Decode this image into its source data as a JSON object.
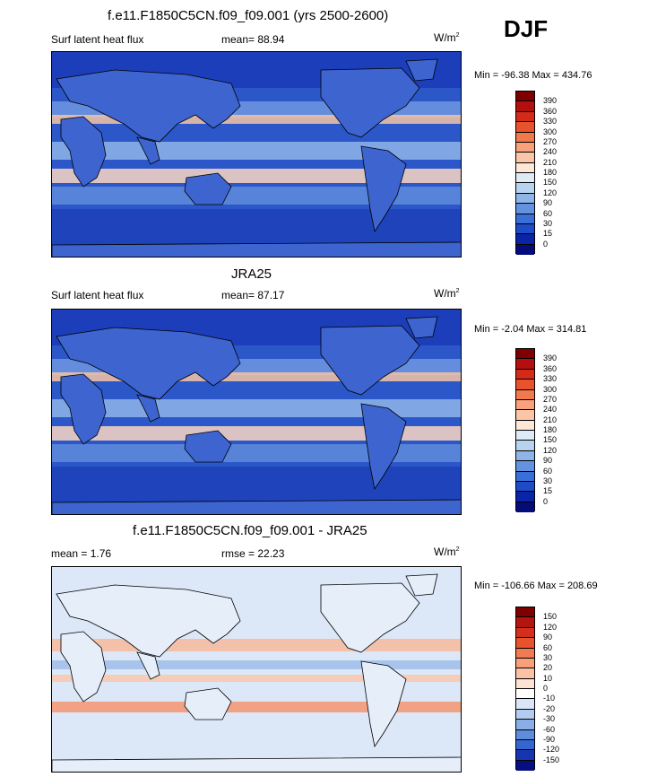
{
  "season": "DJF",
  "panels": [
    {
      "id": "model",
      "title": "f.e11.F1850C5CN.f09_f09.001 (yrs 2500-2600)",
      "left_label": "Surf latent heat flux",
      "stat_label": "mean=  88.94",
      "units": "W/m",
      "units_sup": "2",
      "minmax": "Min = -96.38 Max = 434.76",
      "colorbar": {
        "ticks": [
          "390",
          "360",
          "330",
          "300",
          "270",
          "240",
          "210",
          "180",
          "150",
          "120",
          "90",
          "60",
          "30",
          "15",
          "0"
        ],
        "colors": [
          "#7f0000",
          "#b30f0f",
          "#d42a1a",
          "#e8532e",
          "#f2794c",
          "#f8a17b",
          "#fbc6a8",
          "#fde7d6",
          "#deebf7",
          "#b8d3ef",
          "#8fb4e8",
          "#6393e0",
          "#3a6fd8",
          "#1e4bc8",
          "#0a24a8",
          "#040c7a"
        ]
      }
    },
    {
      "id": "obs",
      "title": "JRA25",
      "left_label": "Surf latent heat flux",
      "stat_label": "mean=  87.17",
      "units": "W/m",
      "units_sup": "2",
      "minmax": "Min =  -2.04 Max = 314.81",
      "colorbar": {
        "ticks": [
          "390",
          "360",
          "330",
          "300",
          "270",
          "240",
          "210",
          "180",
          "150",
          "120",
          "90",
          "60",
          "30",
          "15",
          "0"
        ],
        "colors": [
          "#7f0000",
          "#b30f0f",
          "#d42a1a",
          "#e8532e",
          "#f2794c",
          "#f8a17b",
          "#fbc6a8",
          "#fde7d6",
          "#deebf7",
          "#b8d3ef",
          "#8fb4e8",
          "#6393e0",
          "#3a6fd8",
          "#1e4bc8",
          "#0a24a8",
          "#040c7a"
        ]
      }
    },
    {
      "id": "diff",
      "title": "f.e11.F1850C5CN.f09_f09.001 - JRA25",
      "left_label": "mean =   1.76",
      "stat_label": "rmse =  22.23",
      "units": "W/m",
      "units_sup": "2",
      "minmax": "Min = -106.66 Max = 208.69",
      "colorbar": {
        "ticks": [
          "150",
          "120",
          "90",
          "60",
          "30",
          "20",
          "10",
          "0",
          "-10",
          "-20",
          "-30",
          "-60",
          "-90",
          "-120",
          "-150"
        ],
        "colors": [
          "#7f0000",
          "#b3150f",
          "#d42f1c",
          "#e8532e",
          "#f27a50",
          "#f8a07c",
          "#fbc3a6",
          "#fde3d4",
          "#ffffff",
          "#d8e6f7",
          "#b4ccef",
          "#8aaee6",
          "#5e8ddc",
          "#3566d0",
          "#1636b0",
          "#060e80"
        ]
      }
    }
  ]
}
